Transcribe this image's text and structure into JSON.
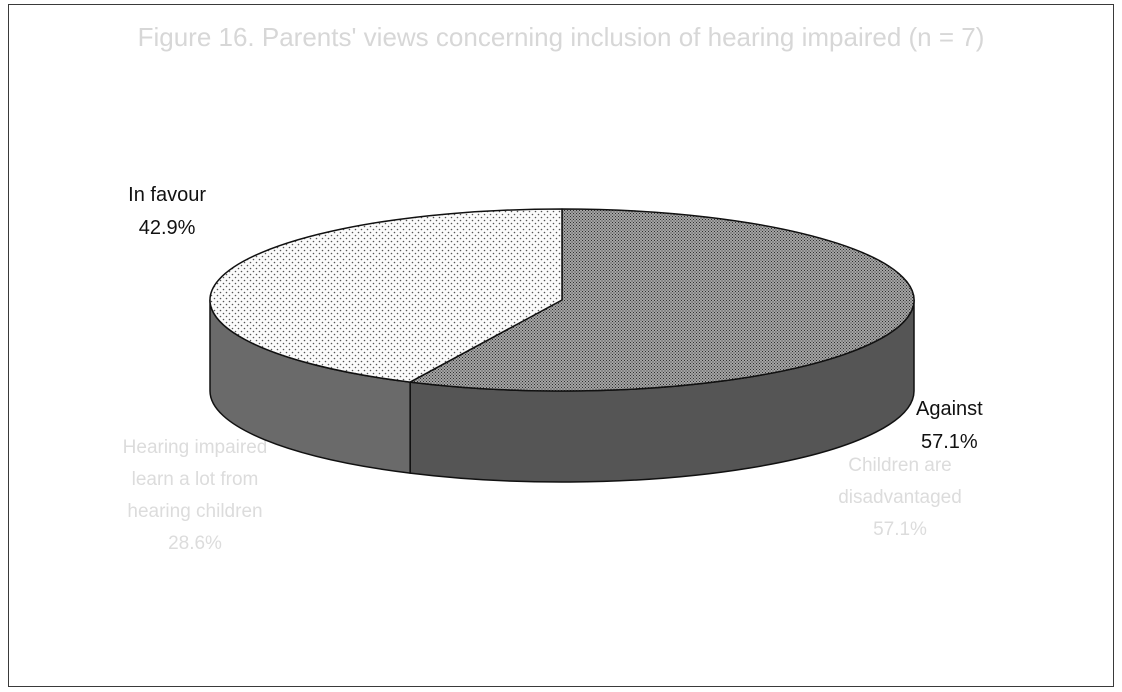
{
  "background_text": {
    "title": "Figure 16.    Parents' views concerning inclusion of hearing impaired (n = 7)",
    "left_note": [
      "Hearing impaired",
      "learn a lot from",
      "hearing children",
      "28.6%"
    ],
    "right_note": [
      "Children are",
      "disadvantaged",
      "57.1%"
    ]
  },
  "chart_data": {
    "type": "pie",
    "style": "3d",
    "title": "",
    "slices": [
      {
        "label": "Against",
        "value": 57.1,
        "value_label": "57.1%",
        "pattern": "dense-crosshatch",
        "top_color": "#8a8a8a",
        "side_color": "#555555"
      },
      {
        "label": "In favour",
        "value": 42.9,
        "value_label": "42.9%",
        "pattern": "sparse-dots",
        "top_color": "#fafafa",
        "side_color": "#6a6a6a"
      }
    ],
    "legend": "none"
  }
}
